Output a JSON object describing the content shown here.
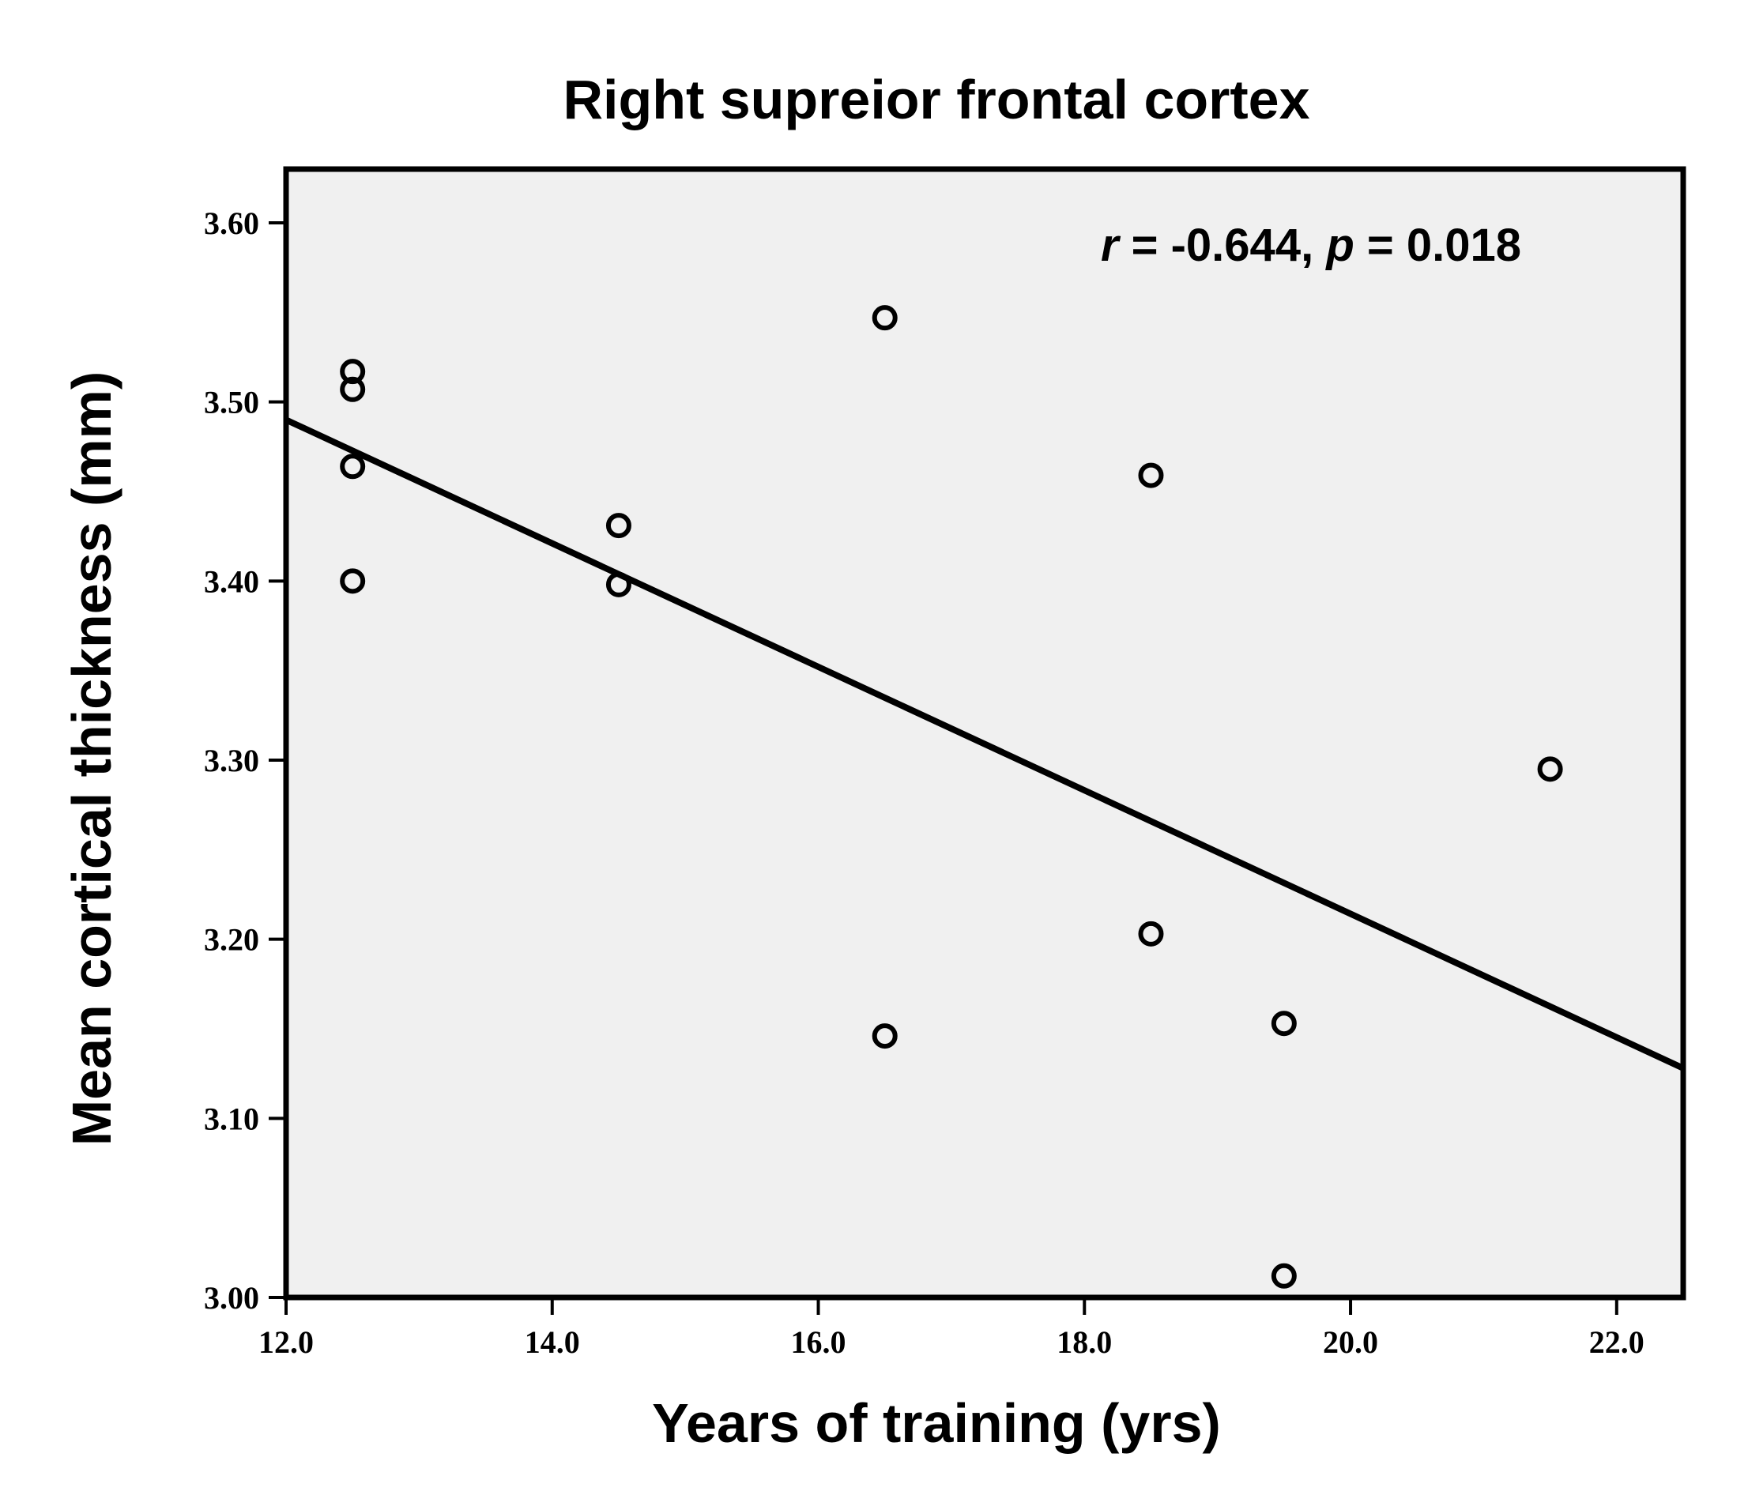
{
  "chart_data": {
    "type": "scatter",
    "title": "Right supreior frontal cortex",
    "xlabel": "Years of training (yrs)",
    "ylabel": "Mean cortical thickness (mm)",
    "xlim": [
      12.0,
      22.5
    ],
    "ylim": [
      3.0,
      3.63
    ],
    "x_ticks": [
      12.0,
      14.0,
      16.0,
      18.0,
      20.0,
      22.0
    ],
    "x_tick_labels": [
      "12.0",
      "14.0",
      "16.0",
      "18.0",
      "20.0",
      "22.0"
    ],
    "y_ticks": [
      3.0,
      3.1,
      3.2,
      3.3,
      3.4,
      3.5,
      3.6
    ],
    "y_tick_labels": [
      "3.00",
      "3.10",
      "3.20",
      "3.30",
      "3.40",
      "3.50",
      "3.60"
    ],
    "grid": false,
    "annotation": {
      "r_symbol": "r",
      "r_text": " = -0.644, ",
      "p_symbol": "p",
      "p_text": " = 0.018"
    },
    "points": [
      {
        "x": 12.5,
        "y": 3.517
      },
      {
        "x": 12.5,
        "y": 3.507
      },
      {
        "x": 12.5,
        "y": 3.464
      },
      {
        "x": 12.5,
        "y": 3.4
      },
      {
        "x": 14.5,
        "y": 3.431
      },
      {
        "x": 14.5,
        "y": 3.398
      },
      {
        "x": 16.5,
        "y": 3.547
      },
      {
        "x": 16.5,
        "y": 3.146
      },
      {
        "x": 18.5,
        "y": 3.459
      },
      {
        "x": 18.5,
        "y": 3.203
      },
      {
        "x": 19.5,
        "y": 3.153
      },
      {
        "x": 19.5,
        "y": 3.012
      },
      {
        "x": 21.5,
        "y": 3.295
      }
    ],
    "fit_line": {
      "x": [
        12.0,
        22.5
      ],
      "y": [
        3.49,
        3.128
      ]
    },
    "colors": {
      "plot_background": "#f0f0f0",
      "frame": "#000000",
      "marker": "#000000",
      "line": "#000000"
    }
  }
}
